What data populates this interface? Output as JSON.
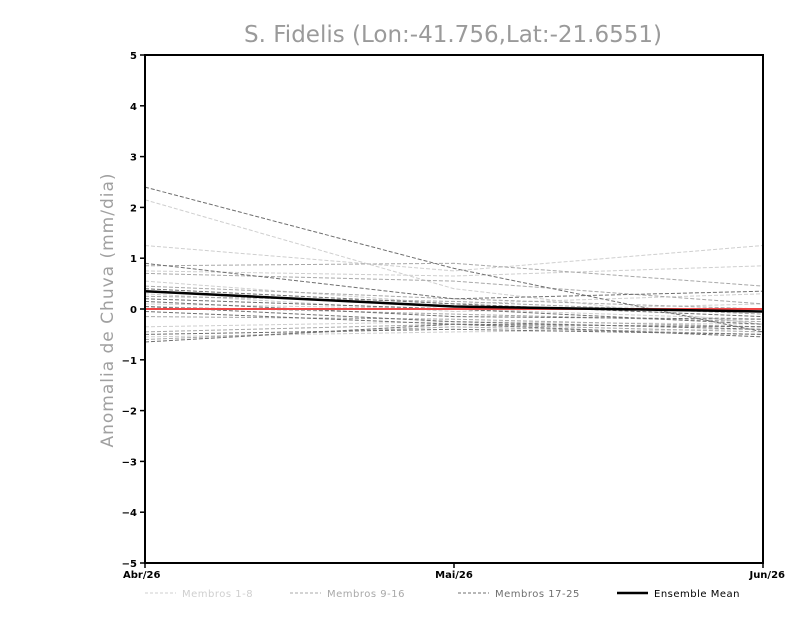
{
  "chart_data": {
    "type": "line",
    "title": "S. Fidelis (Lon:-41.756,Lat:-21.6551)",
    "ylabel": "Anomalia de Chuva (mm/dia)",
    "xlabel": "",
    "categories": [
      "Abr/26",
      "Mai/26",
      "Jun/26"
    ],
    "ylim": [
      -5,
      5
    ],
    "yticks": [
      -5,
      -4,
      -3,
      -2,
      -1,
      0,
      1,
      2,
      3,
      4,
      5
    ],
    "grid": false,
    "legend_position": "bottom",
    "zero_line_color": "#ee4444",
    "groups": [
      {
        "name": "Membros 1-8",
        "color": "#cfcfcf",
        "style": "dashed",
        "series": [
          [
            2.15,
            0.4,
            -0.3
          ],
          [
            1.25,
            0.75,
            1.25
          ],
          [
            0.75,
            0.65,
            0.85
          ],
          [
            0.55,
            0.1,
            0.3
          ],
          [
            0.3,
            -0.05,
            0.1
          ],
          [
            0.1,
            0.0,
            -0.2
          ],
          [
            -0.35,
            -0.25,
            -0.3
          ],
          [
            -0.55,
            -0.45,
            -0.4
          ]
        ]
      },
      {
        "name": "Membros 9-16",
        "color": "#a8a8a8",
        "style": "dashed",
        "series": [
          [
            0.85,
            0.9,
            0.45
          ],
          [
            0.7,
            0.55,
            0.1
          ],
          [
            0.45,
            0.2,
            0.0
          ],
          [
            0.25,
            0.15,
            -0.1
          ],
          [
            0.05,
            -0.1,
            -0.25
          ],
          [
            -0.15,
            -0.2,
            -0.35
          ],
          [
            -0.45,
            -0.3,
            -0.45
          ],
          [
            -0.6,
            -0.35,
            -0.5
          ]
        ]
      },
      {
        "name": "Membros 17-25",
        "color": "#6f6f6f",
        "style": "dashed",
        "series": [
          [
            2.4,
            0.8,
            -0.45
          ],
          [
            0.9,
            0.2,
            0.35
          ],
          [
            0.4,
            0.1,
            -0.15
          ],
          [
            0.2,
            0.0,
            -0.3
          ],
          [
            0.15,
            -0.15,
            -0.2
          ],
          [
            0.05,
            -0.25,
            -0.4
          ],
          [
            -0.05,
            -0.3,
            -0.35
          ],
          [
            -0.5,
            -0.4,
            -0.5
          ],
          [
            -0.65,
            -0.3,
            -0.55
          ]
        ]
      }
    ],
    "ensemble_mean": {
      "name": "Ensemble Mean",
      "color": "#000000",
      "values": [
        0.35,
        0.05,
        -0.05
      ]
    },
    "legend": [
      "Membros 1-8",
      "Membros 9-16",
      "Membros 17-25",
      "Ensemble Mean"
    ]
  }
}
